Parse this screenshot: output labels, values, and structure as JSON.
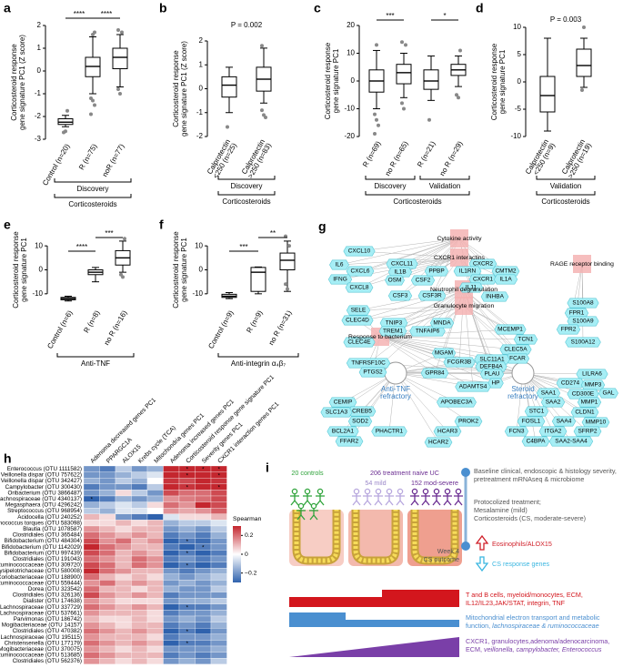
{
  "box_panels": [
    {
      "letter": "a",
      "ylabel": [
        "Corticosteroid response",
        "gene signature PC1 (Z score)"
      ],
      "ylim": [
        -3,
        2
      ],
      "yticks": [
        -3,
        -2,
        -1,
        0,
        1,
        2
      ],
      "groups": [
        {
          "label": [
            "Control (n=20)"
          ],
          "min": -2.45,
          "q1": -2.35,
          "median": -2.25,
          "q3": -2.1,
          "max": -1.95,
          "outliers": [
            -2.7,
            -2.65,
            -1.75
          ]
        },
        {
          "label": [
            "R (n=75)"
          ],
          "min": -1.0,
          "q1": -0.25,
          "median": 0.2,
          "q3": 0.6,
          "max": 1.5,
          "outliers": [
            -1.2,
            -1.3,
            -1.5,
            -1.9,
            1.6,
            1.7
          ]
        },
        {
          "label": [
            "noR (n=77)"
          ],
          "min": -0.7,
          "q1": 0.1,
          "median": 0.6,
          "q3": 1.0,
          "max": 1.6,
          "outliers": [
            -0.8,
            -1.0,
            1.7,
            1.8
          ]
        }
      ],
      "annotations": [
        "****",
        "****"
      ],
      "brackets": [
        "Discovery",
        "Corticosteroids"
      ]
    },
    {
      "letter": "b",
      "ylabel": [
        "Corticosteroid response",
        "gene signature PC1 (Z score)"
      ],
      "ylim": [
        -2,
        2
      ],
      "yticks": [
        -2,
        -1,
        0,
        1,
        2
      ],
      "groups": [
        {
          "label": [
            "Calprotectin",
            "<250 (n=25)"
          ],
          "min": -1.0,
          "q1": -0.35,
          "median": 0.15,
          "q3": 0.5,
          "max": 0.9,
          "outliers": [
            -1.6
          ]
        },
        {
          "label": [
            "Calprotectin",
            ">250 (n=83)"
          ],
          "min": -0.6,
          "q1": -0.1,
          "median": 0.4,
          "q3": 0.9,
          "max": 1.7,
          "outliers": [
            -0.9,
            -1.1,
            -1.2,
            1.8
          ]
        }
      ],
      "annotations": [
        "P = 0.002"
      ],
      "brackets": [
        "Discovery",
        "Corticosteroids"
      ]
    },
    {
      "letter": "c",
      "ylabel": [
        "Corticosteroid response",
        "gene signature PC1"
      ],
      "ylim": [
        -20,
        20
      ],
      "yticks": [
        -20,
        -10,
        0,
        10,
        20
      ],
      "groups": [
        {
          "label": [
            "R (n=69)"
          ],
          "min": -10,
          "q1": -4,
          "median": 0,
          "q3": 4,
          "max": 11,
          "outliers": [
            -12,
            -14,
            -16,
            -19,
            13
          ]
        },
        {
          "label": [
            "no R (n=65)"
          ],
          "min": -6,
          "q1": -1,
          "median": 3,
          "q3": 6,
          "max": 10,
          "outliers": [
            -8,
            -10,
            13,
            14
          ]
        },
        {
          "label": [
            "R (n=21)"
          ],
          "min": -7,
          "q1": -3,
          "median": 0,
          "q3": 4,
          "max": 9,
          "outliers": [
            -14
          ]
        },
        {
          "label": [
            "no R (n=29)"
          ],
          "min": -2,
          "q1": 2,
          "median": 4,
          "q3": 6,
          "max": 9,
          "outliers": [
            -5,
            -6,
            11
          ]
        }
      ],
      "annotations": [
        "***",
        "*"
      ],
      "brackets": [
        "Discovery",
        "Validation",
        "Corticosteroids"
      ]
    },
    {
      "letter": "d",
      "ylabel": [
        "Corticosteroid response",
        "gene signature PC1"
      ],
      "ylim": [
        -10,
        10
      ],
      "yticks": [
        -10,
        -5,
        0,
        5,
        10
      ],
      "groups": [
        {
          "label": [
            "Calprotectin",
            "<250 (n=9)"
          ],
          "min": -9,
          "q1": -5.5,
          "median": -2.5,
          "q3": 1,
          "max": 8,
          "outliers": []
        },
        {
          "label": [
            "Calprotectin",
            ">250 (n=19)"
          ],
          "min": -1,
          "q1": 1,
          "median": 3,
          "q3": 6,
          "max": 8,
          "outliers": [
            -1.5,
            10
          ]
        }
      ],
      "annotations": [
        "P = 0.003"
      ],
      "brackets": [
        "Validation",
        "Corticosteroids"
      ]
    },
    {
      "letter": "e",
      "ylabel": [
        "Corticosteroid response",
        "gene signature PC1"
      ],
      "ylim": [
        -15,
        15
      ],
      "yticks": [
        -10,
        0,
        10
      ],
      "groups": [
        {
          "label": [
            "Control (n=6)"
          ],
          "min": -13,
          "q1": -12.5,
          "median": -12,
          "q3": -11.5,
          "max": -11,
          "outliers": []
        },
        {
          "label": [
            "R (n=8)"
          ],
          "min": -5,
          "q1": -2,
          "median": -1,
          "q3": 0,
          "max": 1,
          "outliers": []
        },
        {
          "label": [
            "no R (n=16)"
          ],
          "min": -1,
          "q1": 2,
          "median": 5,
          "q3": 8,
          "max": 12,
          "outliers": [
            -2,
            -3,
            13
          ]
        }
      ],
      "annotations": [
        "****",
        "***"
      ],
      "brackets": [
        "Anti-TNF"
      ]
    },
    {
      "letter": "f",
      "ylabel": [
        "Corticosteroid response",
        "gene signature PC1"
      ],
      "ylim": [
        -15,
        15
      ],
      "yticks": [
        -10,
        0,
        10
      ],
      "groups": [
        {
          "label": [
            "Control (n=9)"
          ],
          "min": -12,
          "q1": -11.5,
          "median": -11,
          "q3": -10.2,
          "max": -9.5,
          "outliers": []
        },
        {
          "label": [
            "R (n=9)"
          ],
          "min": -10,
          "q1": -9,
          "median": -1,
          "q3": 1,
          "max": 1.2,
          "outliers": []
        },
        {
          "label": [
            "no R (n=31)"
          ],
          "min": -9,
          "q1": 0,
          "median": 4,
          "q3": 7,
          "max": 12,
          "outliers": [
            -6,
            -8,
            10,
            14
          ]
        }
      ],
      "annotations": [
        "***",
        "**"
      ],
      "brackets": [
        "Anti-integrin α₄β₇"
      ]
    }
  ],
  "network": {
    "letter": "g",
    "terms": [
      "Cytokine activity",
      "CXCR1 interactins",
      "RAGE receptor binding",
      "Neutrophil degranulation",
      "Granulocyte migration",
      "Response to bacterium"
    ],
    "hubs": [
      [
        "Anti-TNF",
        "refractory"
      ],
      [
        "Steroid",
        "refractory"
      ]
    ],
    "genes": [
      "CXCL10",
      "IL6",
      "CXCL6",
      "IFNG",
      "CXCL8",
      "CXCL11",
      "IL1B",
      "OSM",
      "CSF2",
      "PPBP",
      "CSF3",
      "CSF3R",
      "CXCR2",
      "IL1RN",
      "CMTM2",
      "CXCR1",
      "IL1A",
      "IL11",
      "INHBA",
      "S100A8",
      "FPR1",
      "S100A9",
      "FPR2",
      "S100A12",
      "SELE",
      "CLEC4D",
      "TNIP3",
      "TREM1",
      "TNFAIP6",
      "MNDA",
      "CLEC4E",
      "MCEMP1",
      "TCN1",
      "CLEC5A",
      "FCAR",
      "MGAM",
      "FCGR3B",
      "SLC11A1",
      "DEFB4A",
      "PLAU",
      "HP",
      "GPR84",
      "ADAMTS4",
      "TNFRSF10C",
      "PTGS2",
      "CEMIP",
      "CREB5",
      "SLC1A3",
      "SOD2",
      "BCL2A1",
      "PHACTR1",
      "FFAR2",
      "APOBEC3A",
      "PROK2",
      "HCAR3",
      "HCAR2",
      "LILRA6",
      "CD274",
      "MMP3",
      "SAA1",
      "CD300E",
      "GAL",
      "SAA2",
      "MMP1",
      "STC1",
      "CLDN1",
      "FOSL1",
      "SAA4",
      "MMP10",
      "FCN3",
      "ITGA2",
      "SFRP2",
      "C4BPA",
      "SAA2-SAA4"
    ]
  },
  "heatmap": {
    "letter": "h",
    "columns": [
      "Adenoma decreased genes PC1",
      "PPARGC1A",
      "ALOX15",
      "Krebs cycle (TCA)",
      "Mitochondria genes PC1",
      "Adenoma increased genes PC1",
      "Corticosteroid response gene signature PC1",
      "Severity genes PC1",
      "CXCR1 interaction genes PC1"
    ],
    "rows": [
      "Enterococcus (OTU 1111582)",
      "Veillonella dispar (OTU 757622)",
      "Veillonella dispar (OTU 342427)",
      "Campylobacter (OTU 300430)",
      "Oribacterium (OTU 3866487)",
      "Lachnospiraceae (OTU 4340137)",
      "Megasphaera (OTU 4296242)",
      "Streptococcus (OTU 968954)",
      "Acidocella (OTU 240252)",
      "Ruminococcus torques (OTU 583098)",
      "Blautia (OTU 1078587)",
      "Clostridiales (OTU 365484)",
      "Bifidobacterium (OTU 484304)",
      "Bifidobacterium (OTU 1142029)",
      "Bifidobacterium (OTU 997439)",
      "Clostridiales (OTU 191043)",
      "Ruminococcaceae (OTU 309720)",
      "Erysipelotrichaceae (OTU 580008)",
      "Coriobacteriaceae (OTU 188900)",
      "Ruminococcaceae (OTU 559444)",
      "Dorea (OTU 323542)",
      "Clostridiales (OTU 326136)",
      "Dialister (OTU 174638)",
      "Lachnospiraceae (OTU 337729)",
      "Lachnospiraceae (OTU 537661)",
      "Parvimonas (OTU 186742)",
      "Mogibacteriaceae (OTU 14157)",
      "Clostridiales (OTU 470382)",
      "Lachnospiraceae (OTU 195115)",
      "Christensenella (OTU 177179)",
      "Mogibacteriaceae (OTU 370075)",
      "Ruminococcaceae (OTU 513685)",
      "Clostridiales (OTU 562376)"
    ],
    "values": [
      [
        -0.2,
        -0.25,
        -0.1,
        -0.2,
        -0.15,
        0.3,
        0.32,
        0.3,
        0.35
      ],
      [
        -0.2,
        -0.2,
        -0.15,
        -0.1,
        -0.05,
        0.3,
        0.3,
        0.32,
        0.3
      ],
      [
        -0.15,
        -0.2,
        -0.1,
        -0.15,
        0,
        0.28,
        0.25,
        0.3,
        0.28
      ],
      [
        -0.25,
        -0.2,
        -0.2,
        -0.25,
        -0.1,
        0.3,
        0.28,
        0.32,
        0.3
      ],
      [
        -0.2,
        -0.15,
        0.05,
        -0.1,
        -0.2,
        0.25,
        0.2,
        0.2,
        0.25
      ],
      [
        -0.3,
        -0.25,
        -0.15,
        -0.2,
        -0.15,
        0.15,
        0.18,
        0.2,
        0.25
      ],
      [
        -0.15,
        -0.1,
        -0.05,
        -0.1,
        0.05,
        0.2,
        0.15,
        0.3,
        0.25
      ],
      [
        -0.1,
        -0.15,
        -0.05,
        -0.05,
        0,
        0.15,
        0.12,
        0.15,
        0.22
      ],
      [
        0.1,
        0.05,
        -0.2,
        -0.25,
        -0.3,
        -0.05,
        0.05,
        0.05,
        0.1
      ],
      [
        0.05,
        0.05,
        0.1,
        0.05,
        0.1,
        -0.15,
        -0.1,
        -0.1,
        -0.05
      ],
      [
        0.15,
        0.1,
        0.05,
        0.1,
        0.1,
        -0.2,
        -0.15,
        -0.2,
        -0.1
      ],
      [
        0.2,
        0.15,
        0.1,
        0.15,
        0.1,
        -0.25,
        -0.2,
        -0.25,
        -0.15
      ],
      [
        0.25,
        0.15,
        0.2,
        0.1,
        0.15,
        -0.3,
        -0.25,
        -0.28,
        -0.2
      ],
      [
        0.3,
        0.2,
        0.15,
        0.1,
        0.1,
        -0.25,
        -0.3,
        -0.25,
        -0.2
      ],
      [
        0.25,
        0.2,
        0.1,
        0.15,
        0.1,
        -0.3,
        -0.25,
        -0.3,
        -0.25
      ],
      [
        0.2,
        0.15,
        0.1,
        0.2,
        0.15,
        -0.25,
        -0.2,
        -0.25,
        -0.2
      ],
      [
        0.25,
        0.2,
        0.1,
        0.2,
        0.15,
        -0.3,
        -0.25,
        -0.3,
        -0.25
      ],
      [
        0.3,
        0.2,
        0.15,
        0.1,
        0.1,
        -0.2,
        -0.25,
        -0.2,
        -0.15
      ],
      [
        0.2,
        0.1,
        0.05,
        0.1,
        0.05,
        -0.15,
        -0.2,
        -0.15,
        -0.1
      ],
      [
        0.15,
        0.2,
        0.1,
        0.15,
        0.1,
        -0.2,
        -0.15,
        -0.2,
        -0.15
      ],
      [
        0.2,
        0.1,
        0.1,
        0.05,
        0.1,
        -0.15,
        -0.2,
        -0.2,
        -0.1
      ],
      [
        0.25,
        0.15,
        0.1,
        0.15,
        0.1,
        -0.25,
        -0.2,
        -0.2,
        -0.2
      ],
      [
        0.15,
        0.1,
        0.05,
        0.05,
        0.05,
        -0.2,
        -0.15,
        -0.15,
        -0.1
      ],
      [
        0.2,
        0.15,
        0.1,
        0.15,
        0.1,
        -0.3,
        -0.25,
        -0.25,
        -0.2
      ],
      [
        0.15,
        0.1,
        0.1,
        0.1,
        0.05,
        -0.25,
        -0.2,
        -0.2,
        -0.15
      ],
      [
        0.1,
        0.05,
        0.05,
        0.1,
        0.05,
        -0.2,
        -0.15,
        -0.2,
        -0.1
      ],
      [
        0.15,
        0.1,
        0.05,
        0.1,
        0.1,
        -0.25,
        -0.2,
        -0.25,
        -0.15
      ],
      [
        0.2,
        0.15,
        0.1,
        0.15,
        0.1,
        -0.3,
        -0.25,
        -0.3,
        -0.2
      ],
      [
        0.15,
        0.1,
        0.1,
        0.1,
        0.05,
        -0.25,
        -0.2,
        -0.2,
        -0.15
      ],
      [
        0.2,
        0.15,
        0.1,
        0.15,
        0.1,
        -0.3,
        -0.25,
        -0.25,
        -0.2
      ],
      [
        0.15,
        0.1,
        0.05,
        0.1,
        0.05,
        -0.2,
        -0.2,
        -0.2,
        -0.15
      ],
      [
        0.2,
        0.15,
        0.1,
        0.1,
        0.1,
        -0.25,
        -0.2,
        -0.25,
        -0.2
      ],
      [
        0.15,
        0.1,
        0.05,
        0.1,
        0.05,
        -0.2,
        -0.15,
        -0.2,
        -0.1
      ]
    ],
    "stars": [
      [
        0,
        6
      ],
      [
        0,
        7
      ],
      [
        0,
        8
      ],
      [
        1,
        6
      ],
      [
        1,
        8
      ],
      [
        3,
        6
      ],
      [
        3,
        8
      ],
      [
        5,
        0
      ],
      [
        12,
        6
      ],
      [
        13,
        7
      ],
      [
        14,
        6
      ],
      [
        16,
        6
      ],
      [
        23,
        6
      ],
      [
        27,
        6
      ],
      [
        29,
        6
      ]
    ],
    "star": "*",
    "legend_title": "Spearman",
    "clim": [
      -0.3,
      0.3
    ],
    "ticks": [
      0.2,
      0,
      {
        "value": -0.2,
        "label": "−0.2"
      }
    ],
    "colors": {
      "negative": "#2f62ad",
      "zero": "#ffffff",
      "positive": "#c4262e"
    }
  },
  "design": {
    "letter": "i",
    "controls": "20 controls",
    "naive": "206 treatment naive UC",
    "mild": "54 mild",
    "severe": "152 mod-severe",
    "baseline": [
      "Baseline clinical, endoscopic & histology severity,",
      "pretreatment mRNAseq & microbiome"
    ],
    "treatment": [
      "Protocolized treatment;",
      "Mesalamine (mild)",
      "Corticosteroids (CS, moderate-severe)"
    ],
    "outcome": [
      "Week 4",
      "CS outcome"
    ],
    "up": "Eosinophils/ALOX15",
    "down": "CS response genes",
    "red_text": [
      [
        "T and B cells, myeloid/monocytes, ECM,"
      ],
      [
        "IL12/IL23,JAK/STAT, integrin, TNF"
      ]
    ],
    "blue_text": [
      [
        "Mitochondrial electron transport and metabolic"
      ],
      [
        "function, ",
        "lachnospiraceae & ruminococcaceae"
      ]
    ],
    "purple_text": [
      [
        "CXCR1, granulocytes,adenoma/adenocarcinoma,"
      ],
      [
        "ECM, ",
        "veillonella, campylobacter, Enterococcus"
      ]
    ]
  }
}
